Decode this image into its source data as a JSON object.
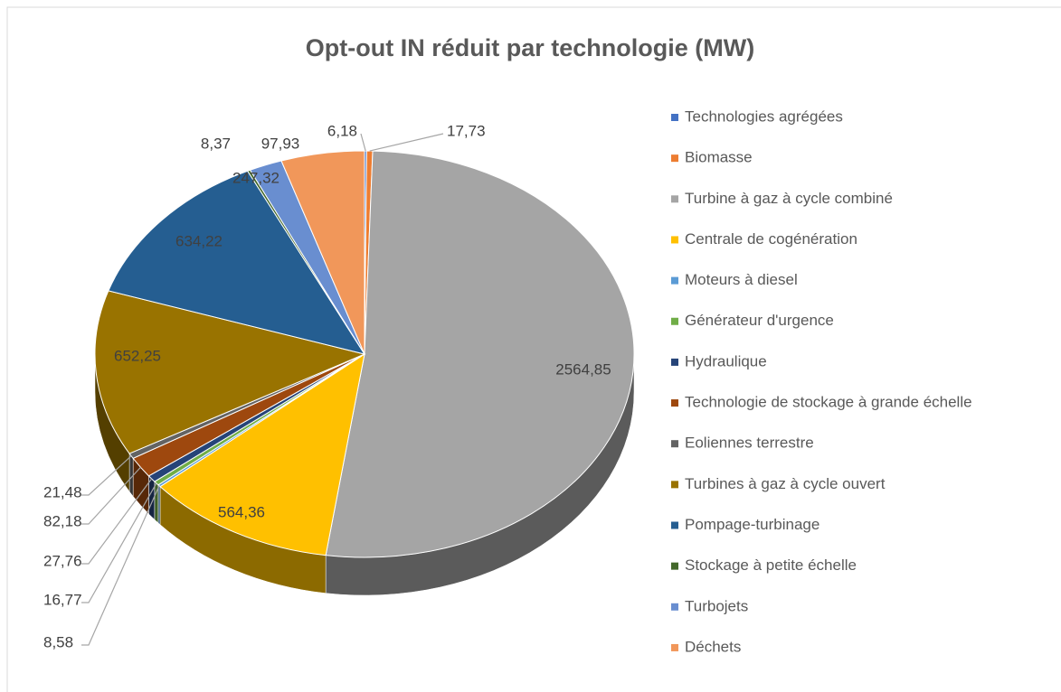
{
  "chart_data": {
    "type": "pie3d",
    "title": "Opt-out IN réduit par technologie (MW)",
    "categories": [
      "Technologies agrégées",
      "Biomasse",
      "Turbine à gaz à cycle combiné",
      "Centrale de cogénération",
      "Moteurs à diesel",
      "Générateur d'urgence",
      "Hydraulique",
      "Technologie de stockage à grande échelle",
      "Eoliennes terrestre",
      "Turbines à gaz à cycle ouvert",
      "Pompage-turbinage",
      "Stockage à petite échelle",
      "Turbojets",
      "Déchets"
    ],
    "values": [
      6.18,
      17.73,
      2564.85,
      564.36,
      8.58,
      16.77,
      27.76,
      82.18,
      21.48,
      652.25,
      634.22,
      8.37,
      97.93,
      247.32
    ],
    "value_labels": [
      "6,18",
      "17,73",
      "2564,85",
      "564,36",
      "8,58",
      "16,77",
      "27,76",
      "82,18",
      "21,48",
      "652,25",
      "634,22",
      "8,37",
      "97,93",
      "247,32"
    ],
    "colors": [
      "#4472c4",
      "#ed7d31",
      "#a5a5a5",
      "#ffc000",
      "#5b9bd5",
      "#70ad47",
      "#264478",
      "#9e480e",
      "#636363",
      "#997300",
      "#255e91",
      "#43682b",
      "#698ed0",
      "#f1975a"
    ],
    "legend": "right"
  }
}
